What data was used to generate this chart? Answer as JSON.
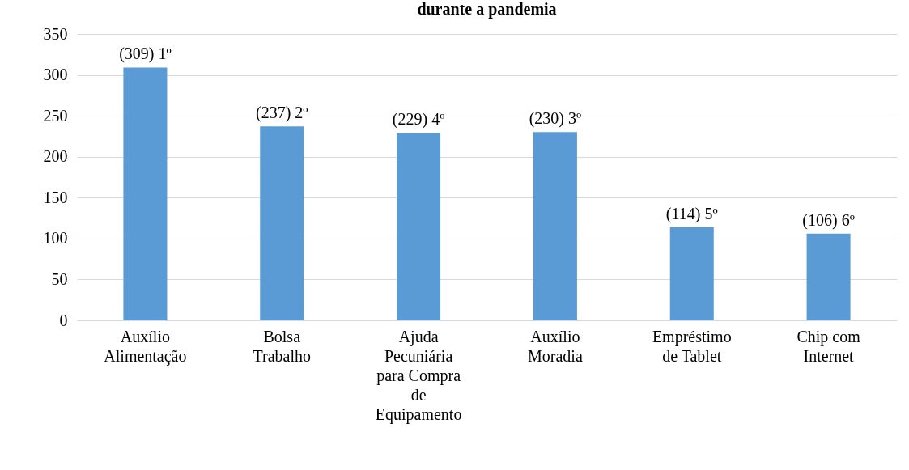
{
  "chart_data": {
    "type": "bar",
    "title": "durante a pandemia",
    "categories": [
      "Auxílio Alimentação",
      "Bolsa Trabalho",
      "Ajuda Pecuniária para Compra de Equipamento",
      "Auxílio Moradia",
      "Empréstimo de Tablet",
      "Chip com Internet"
    ],
    "values": [
      309,
      237,
      229,
      230,
      114,
      106
    ],
    "value_labels": [
      "(309) 1º",
      "(237) 2º",
      "(229) 4º",
      "(230) 3º",
      "(114) 5º",
      "(106) 6º"
    ],
    "color": "#5b9bd5",
    "ylim": [
      0,
      350
    ],
    "yticks": [
      0,
      50,
      100,
      150,
      200,
      250,
      300,
      350
    ],
    "grid": "y"
  }
}
